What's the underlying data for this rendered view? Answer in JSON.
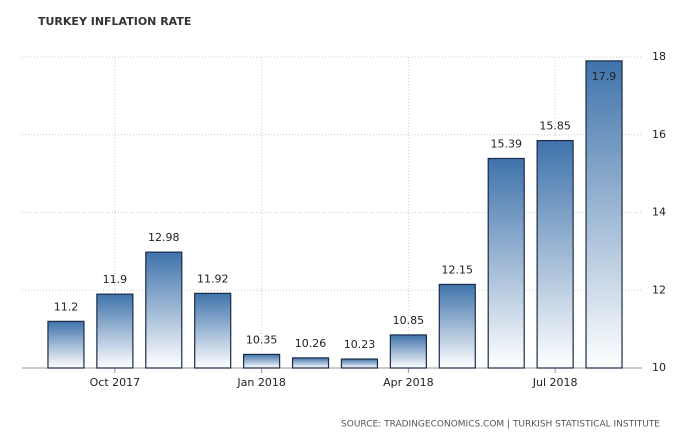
{
  "chart_data": {
    "type": "bar",
    "title": "TURKEY INFLATION RATE",
    "source": "SOURCE: TRADINGECONOMICS.COM | TURKISH STATISTICAL INSTITUTE",
    "categories": [
      null,
      "Oct 2017",
      null,
      null,
      "Jan 2018",
      null,
      null,
      "Apr 2018",
      null,
      null,
      "Jul 2018",
      null
    ],
    "values": [
      11.2,
      11.9,
      12.98,
      11.92,
      10.35,
      10.26,
      10.23,
      10.85,
      12.15,
      15.39,
      15.85,
      17.9
    ],
    "color": "#3f73ab",
    "ylim": [
      10,
      18
    ],
    "yticks": [
      10,
      12,
      14,
      16,
      18
    ],
    "grid": true
  }
}
